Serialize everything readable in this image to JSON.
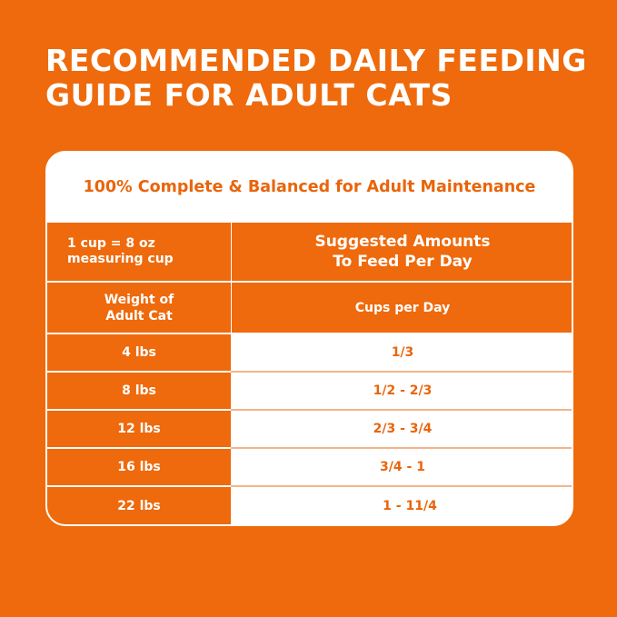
{
  "title": {
    "line1": "RECOMMENDED DAILY FEEDING",
    "line2": "GUIDE FOR ADULT CATS"
  },
  "subtitle": "100% Complete & Balanced for Adult Maintenance",
  "header": {
    "measure_line1": "1 cup = 8 oz",
    "measure_line2": "measuring cup",
    "suggested_line1": "Suggested Amounts",
    "suggested_line2": "To Feed Per Day",
    "weight_line1": "Weight of",
    "weight_line2": "Adult Cat",
    "cups_label": "Cups per Day"
  },
  "rows": [
    {
      "weight": "4 lbs",
      "cups": "1/3"
    },
    {
      "weight": "8 lbs",
      "cups": "1/2 - 2/3"
    },
    {
      "weight": "12 lbs",
      "cups": "2/3 - 3/4"
    },
    {
      "weight": "16 lbs",
      "cups": "3/4 - 1"
    },
    {
      "weight": "22 lbs",
      "cups": "1 - 11/4"
    }
  ],
  "colors": {
    "background": "#ee6a0c",
    "accent_text": "#e8650b",
    "card": "#ffffff"
  }
}
